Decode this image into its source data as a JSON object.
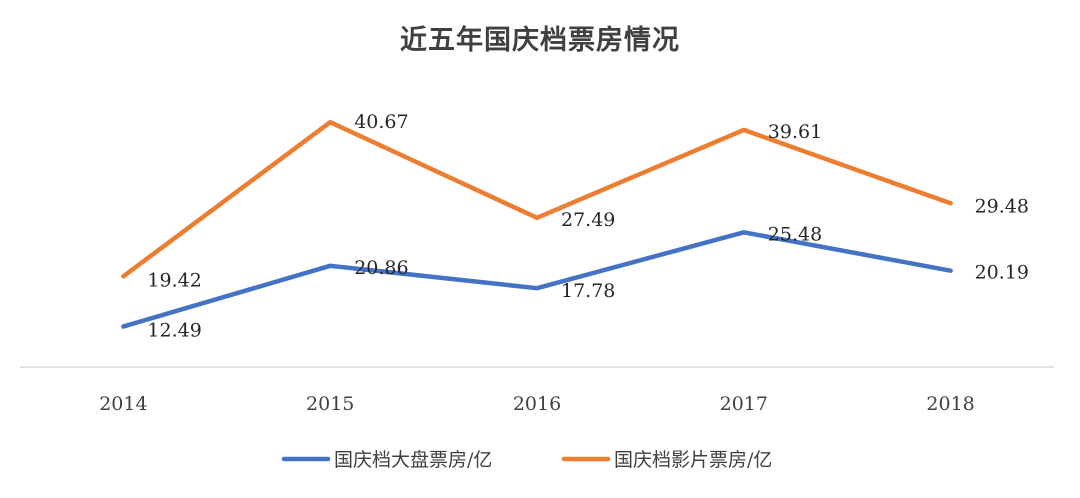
{
  "chart_data": {
    "type": "line",
    "title": "近五年国庆档票房情况",
    "categories": [
      "2014",
      "2015",
      "2016",
      "2017",
      "2018"
    ],
    "series": [
      {
        "name": "国庆档大盘票房/亿",
        "color": "#4472C4",
        "values": [
          12.49,
          20.86,
          17.78,
          25.48,
          20.19
        ],
        "labels": [
          "12.49",
          "20.86",
          "17.78",
          "25.48",
          "20.19"
        ]
      },
      {
        "name": "国庆档影片票房/亿",
        "color": "#ED7D31",
        "values": [
          19.42,
          40.67,
          27.49,
          39.61,
          29.48
        ],
        "labels": [
          "19.42",
          "40.67",
          "27.49",
          "39.61",
          "29.48"
        ]
      }
    ],
    "ylim": [
      0,
      45
    ],
    "grid": false,
    "legend": "bottom",
    "xlabel": "",
    "ylabel": ""
  }
}
